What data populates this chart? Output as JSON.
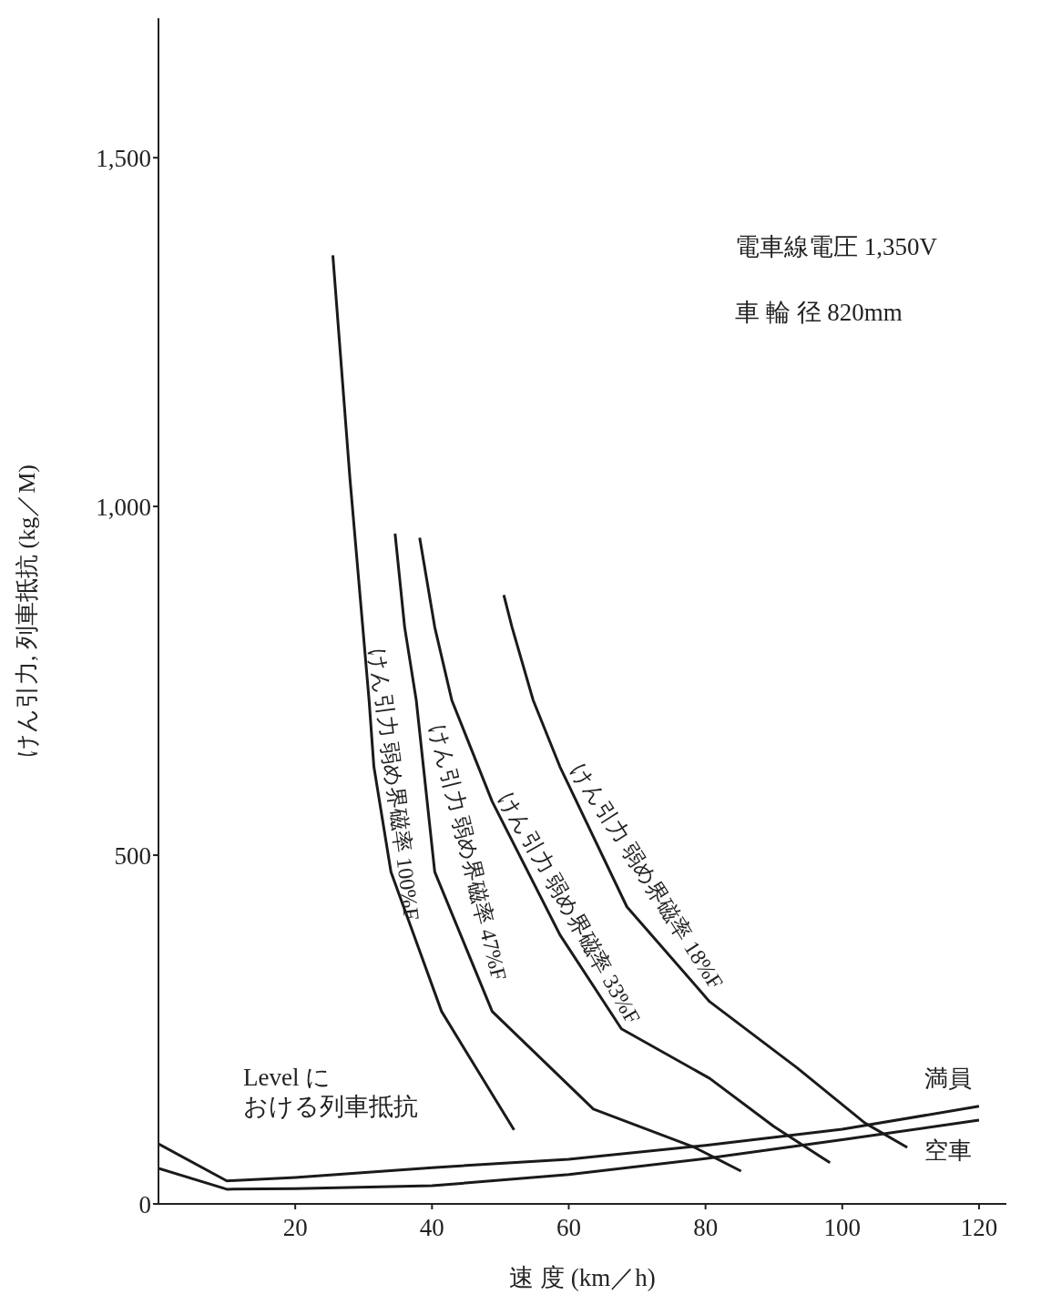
{
  "chart_data": {
    "type": "line",
    "xlabel": "速 度 (km／h)",
    "ylabel": "けん引力, 列車抵抗 (kg／M)",
    "xlim": [
      0,
      124
    ],
    "xticks": [
      20,
      40,
      60,
      80,
      100,
      120
    ],
    "ylim": [
      0,
      1700
    ],
    "yticks": [
      0,
      {
        "value": 500,
        "label": "500"
      },
      {
        "value": 1000,
        "label": "1,000"
      },
      {
        "value": 1500,
        "label": "1,500"
      }
    ],
    "grid": false,
    "legend": false,
    "marker": "none",
    "line_style": "solid",
    "series": [
      {
        "name": "けん引力 弱め界磁率 100%F",
        "color": "#1a1a1a",
        "x": [
          25.5,
          28,
          30.8,
          31.5,
          34,
          41.4,
          52
        ],
        "values": [
          1360,
          1040,
          722,
          627,
          476,
          276,
          106
        ]
      },
      {
        "name": "けん引力 弱め界磁率 47%F",
        "color": "#1a1a1a",
        "x": [
          34.6,
          36,
          37.7,
          40.4,
          48.8,
          63.6,
          78.4,
          85.2
        ],
        "values": [
          961,
          827,
          722,
          476,
          276,
          136,
          81,
          47
        ]
      },
      {
        "name": "けん引力 弱め界磁率 33%F",
        "color": "#1a1a1a",
        "x": [
          38.2,
          40.4,
          42.9,
          48.8,
          58.7,
          67.7,
          80.6,
          90,
          98.2
        ],
        "values": [
          955,
          827,
          722,
          577,
          386,
          251,
          180,
          111,
          59
        ]
      },
      {
        "name": "けん引力 弱め界磁率 18%F",
        "color": "#1a1a1a",
        "x": [
          50.5,
          51.7,
          54.8,
          58.7,
          68.5,
          80.6,
          93.4,
          103.3,
          109.5
        ],
        "values": [
          873,
          827,
          722,
          627,
          426,
          290,
          195,
          116,
          81
        ]
      },
      {
        "name": "満員",
        "color": "#1a1a1a",
        "x": [
          0,
          10,
          20,
          40,
          60,
          80,
          100,
          120
        ],
        "values": [
          86,
          33,
          38,
          52,
          64,
          84,
          107,
          140
        ]
      },
      {
        "name": "空車",
        "color": "#1a1a1a",
        "x": [
          0,
          10,
          20,
          40,
          60,
          80,
          100,
          120
        ],
        "values": [
          51,
          21,
          22,
          26,
          42,
          65,
          92,
          120
        ]
      }
    ],
    "annotations": [
      "電車線電圧 1,350V",
      "車 輪 径 820mm",
      "Level に",
      "おける列車抵抗"
    ]
  }
}
